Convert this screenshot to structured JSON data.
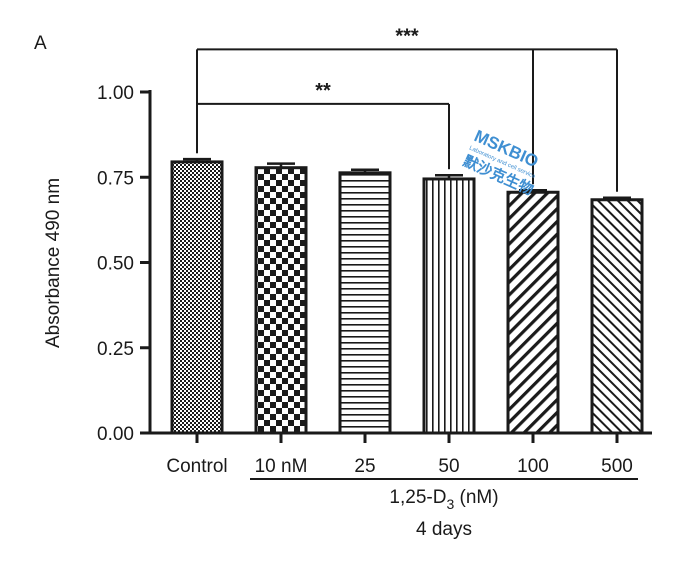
{
  "chart_data": {
    "type": "bar",
    "panel_label": "A",
    "categories": [
      "Control",
      "10 nM",
      "25",
      "50",
      "100",
      "500"
    ],
    "values": [
      0.795,
      0.778,
      0.763,
      0.745,
      0.706,
      0.684
    ],
    "errors": [
      0.008,
      0.012,
      0.009,
      0.011,
      0.006,
      0.006
    ],
    "patterns": [
      "fine-check",
      "checker",
      "horizontal",
      "vertical",
      "diag-right",
      "diag-left"
    ],
    "ylabel": "Absorbance 490 nm",
    "ylim": [
      0,
      1.0
    ],
    "yticks": [
      "0.00",
      "0.25",
      "0.50",
      "0.75",
      "1.00"
    ],
    "group_label_prefix": "1,25-D",
    "group_label_sub": "3",
    "group_label_suffix": " (nM)",
    "xlabel": "4 days",
    "significance": [
      {
        "from": "Control",
        "to": [
          "50"
        ],
        "label": "**"
      },
      {
        "from": "Control",
        "to": [
          "100",
          "500"
        ],
        "label": "***"
      }
    ],
    "grid": false,
    "colors": {
      "bar_edge": "#1a1a1a",
      "background": "#ffffff"
    }
  },
  "watermark": {
    "lines": [
      "MSKBIO",
      "Laboratory and cell service",
      "默沙克生物"
    ],
    "color": "#3f8fd2"
  }
}
